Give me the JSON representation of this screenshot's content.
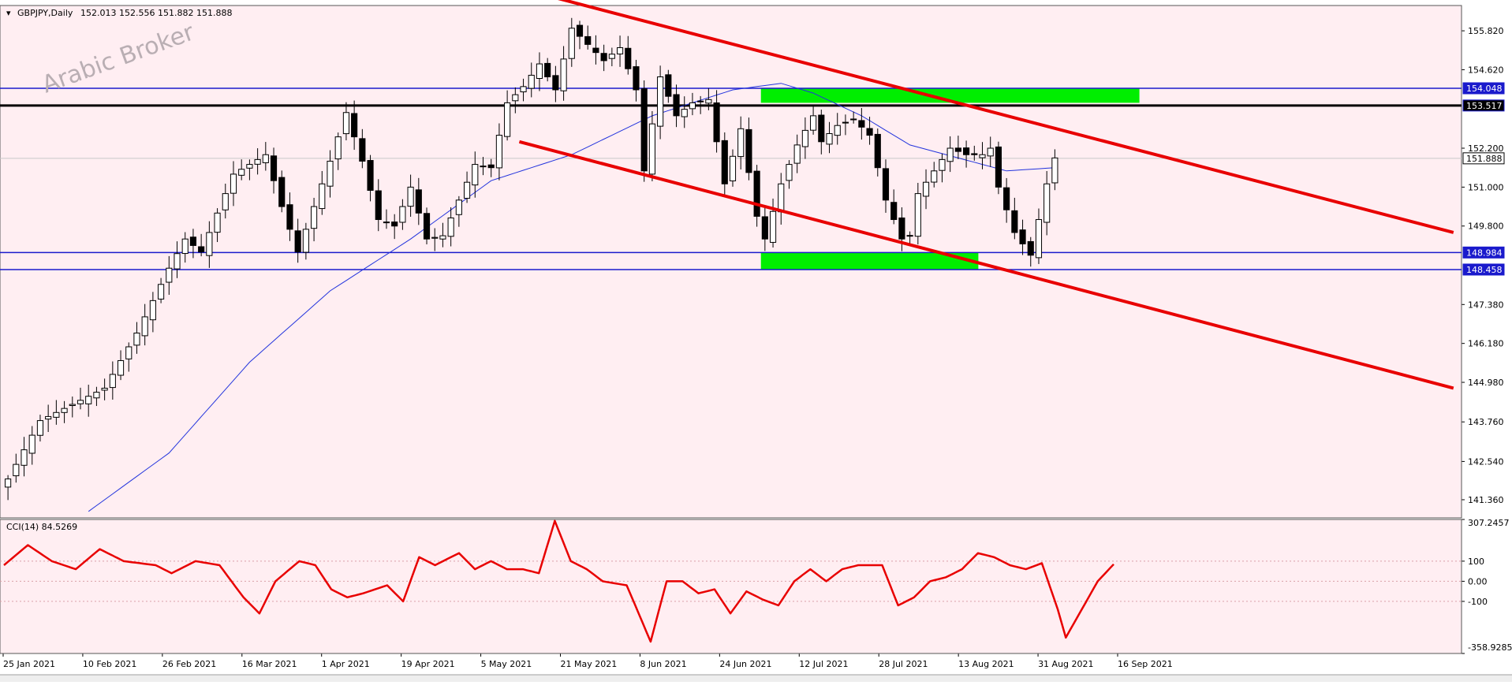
{
  "chart_header": {
    "symbol_label": "GBPJPY,Daily",
    "ohlc_label": "152.013 152.556 151.882 151.888"
  },
  "watermark": "Arabic Broker",
  "colors": {
    "background": "#ffeef2",
    "candle": "#000000",
    "ma_line": "#2233dd",
    "channel": "#e80000",
    "zone": "#00ee00",
    "support_resistance_blue": "#1a1acc",
    "resistance_black": "#000000",
    "cci_line": "#e80000",
    "price_tag_blue": "#1a1acc",
    "price_tag_black": "#000000",
    "price_tag_current": "#ffffff"
  },
  "chart_data": [
    {
      "type": "candlestick",
      "name": "GBPJPY Daily",
      "ylim": [
        140.8,
        156.6
      ],
      "y_tick_labels": [
        "155.820",
        "154.620",
        "152.200",
        "151.000",
        "149.800",
        "147.380",
        "146.180",
        "144.980",
        "143.760",
        "142.540",
        "141.360"
      ],
      "x_tick_labels": [
        "25 Jan 2021",
        "10 Feb 2021",
        "26 Feb 2021",
        "16 Mar 2021",
        "1 Apr 2021",
        "19 Apr 2021",
        "5 May 2021",
        "21 May 2021",
        "8 Jun 2021",
        "24 Jun 2021",
        "12 Jul 2021",
        "28 Jul 2021",
        "13 Aug 2021",
        "31 Aug 2021",
        "16 Sep 2021"
      ],
      "close_path": [
        [
          0,
          142.0
        ],
        [
          4,
          143.8
        ],
        [
          8,
          144.3
        ],
        [
          12,
          144.8
        ],
        [
          16,
          146.5
        ],
        [
          20,
          148.5
        ],
        [
          22,
          149.4
        ],
        [
          24,
          149.0
        ],
        [
          28,
          151.4
        ],
        [
          32,
          152.0
        ],
        [
          34,
          150.4
        ],
        [
          36,
          149.0
        ],
        [
          40,
          151.8
        ],
        [
          42,
          153.3
        ],
        [
          44,
          151.8
        ],
        [
          46,
          150.0
        ],
        [
          48,
          149.8
        ],
        [
          50,
          151.0
        ],
        [
          52,
          149.4
        ],
        [
          54,
          149.5
        ],
        [
          56,
          150.6
        ],
        [
          58,
          151.7
        ],
        [
          60,
          151.6
        ],
        [
          62,
          153.6
        ],
        [
          64,
          154.1
        ],
        [
          66,
          154.8
        ],
        [
          68,
          154.0
        ],
        [
          70,
          155.9
        ],
        [
          72,
          155.4
        ],
        [
          74,
          154.9
        ],
        [
          76,
          155.3
        ],
        [
          78,
          154.0
        ],
        [
          79,
          151.5
        ],
        [
          81,
          154.4
        ],
        [
          83,
          153.2
        ],
        [
          85,
          153.6
        ],
        [
          87,
          153.7
        ],
        [
          89,
          151.1
        ],
        [
          91,
          152.8
        ],
        [
          93,
          150.1
        ],
        [
          94,
          149.4
        ],
        [
          96,
          151.1
        ],
        [
          98,
          152.3
        ],
        [
          100,
          153.2
        ],
        [
          101,
          152.4
        ],
        [
          103,
          152.9
        ],
        [
          105,
          153.1
        ],
        [
          107,
          152.6
        ],
        [
          109,
          150.6
        ],
        [
          111,
          149.4
        ],
        [
          112,
          149.5
        ],
        [
          113,
          150.8
        ],
        [
          115,
          151.5
        ],
        [
          117,
          152.2
        ],
        [
          119,
          152.0
        ],
        [
          121,
          152.0
        ],
        [
          122,
          152.2
        ],
        [
          123,
          151.0
        ],
        [
          125,
          149.6
        ],
        [
          127,
          148.9
        ],
        [
          129,
          151.1
        ],
        [
          130,
          151.9
        ]
      ],
      "moving_average_path": [
        [
          10,
          141.0
        ],
        [
          20,
          142.8
        ],
        [
          30,
          145.6
        ],
        [
          40,
          147.8
        ],
        [
          50,
          149.4
        ],
        [
          60,
          151.2
        ],
        [
          70,
          152.0
        ],
        [
          80,
          153.2
        ],
        [
          90,
          154.0
        ],
        [
          96,
          154.2
        ],
        [
          100,
          153.9
        ],
        [
          106,
          153.2
        ],
        [
          112,
          152.3
        ],
        [
          118,
          151.9
        ],
        [
          124,
          151.5
        ],
        [
          130,
          151.6
        ]
      ],
      "channel_lines": [
        {
          "from": [
            66,
            157.0
          ],
          "to": [
            180,
            149.6
          ]
        },
        {
          "from": [
            64,
            152.4
          ],
          "to": [
            180,
            144.8
          ]
        }
      ],
      "horizontal_levels": [
        {
          "value": 154.048,
          "label": "154.048",
          "style": "blue"
        },
        {
          "value": 153.517,
          "label": "153.517",
          "style": "black"
        },
        {
          "value": 148.984,
          "label": "148.984",
          "style": "blue"
        },
        {
          "value": 148.458,
          "label": "148.458",
          "style": "blue"
        }
      ],
      "zones": [
        {
          "x": [
            94,
            141
          ],
          "y": [
            153.6,
            154.05
          ]
        },
        {
          "x": [
            94,
            121
          ],
          "y": [
            148.45,
            148.98
          ]
        }
      ],
      "current_price": {
        "value": 151.888,
        "label": "151.888"
      }
    },
    {
      "type": "line",
      "name": "CCI(14)",
      "title": "CCI(14) 84.5269",
      "ylim": [
        -358.9285,
        307.2457
      ],
      "y_tick_labels": [
        "307.2457",
        "100",
        "0.00",
        "-100",
        "-358.9285"
      ],
      "levels": [
        100,
        0,
        -100
      ],
      "path": [
        [
          0,
          80
        ],
        [
          3,
          180
        ],
        [
          6,
          100
        ],
        [
          9,
          60
        ],
        [
          12,
          160
        ],
        [
          15,
          100
        ],
        [
          19,
          80
        ],
        [
          21,
          40
        ],
        [
          24,
          100
        ],
        [
          27,
          80
        ],
        [
          30,
          -80
        ],
        [
          32,
          -160
        ],
        [
          34,
          0
        ],
        [
          37,
          100
        ],
        [
          39,
          80
        ],
        [
          41,
          -40
        ],
        [
          43,
          -80
        ],
        [
          45,
          -60
        ],
        [
          48,
          -20
        ],
        [
          50,
          -100
        ],
        [
          52,
          120
        ],
        [
          54,
          80
        ],
        [
          57,
          140
        ],
        [
          59,
          60
        ],
        [
          61,
          100
        ],
        [
          63,
          60
        ],
        [
          65,
          60
        ],
        [
          67,
          40
        ],
        [
          69,
          300
        ],
        [
          71,
          100
        ],
        [
          73,
          60
        ],
        [
          75,
          0
        ],
        [
          78,
          -20
        ],
        [
          81,
          -300
        ],
        [
          83,
          0
        ],
        [
          85,
          0
        ],
        [
          87,
          -60
        ],
        [
          89,
          -40
        ],
        [
          91,
          -160
        ],
        [
          93,
          -50
        ],
        [
          95,
          -90
        ],
        [
          97,
          -120
        ],
        [
          99,
          0
        ],
        [
          101,
          60
        ],
        [
          103,
          0
        ],
        [
          105,
          60
        ],
        [
          107,
          80
        ],
        [
          110,
          80
        ],
        [
          112,
          -120
        ],
        [
          114,
          -80
        ],
        [
          116,
          0
        ],
        [
          118,
          20
        ],
        [
          120,
          60
        ],
        [
          122,
          140
        ],
        [
          124,
          120
        ],
        [
          126,
          80
        ],
        [
          128,
          60
        ],
        [
          130,
          90
        ],
        [
          132,
          -140
        ],
        [
          133,
          -280
        ],
        [
          135,
          -140
        ],
        [
          137,
          0
        ],
        [
          139,
          84.5
        ]
      ]
    }
  ]
}
